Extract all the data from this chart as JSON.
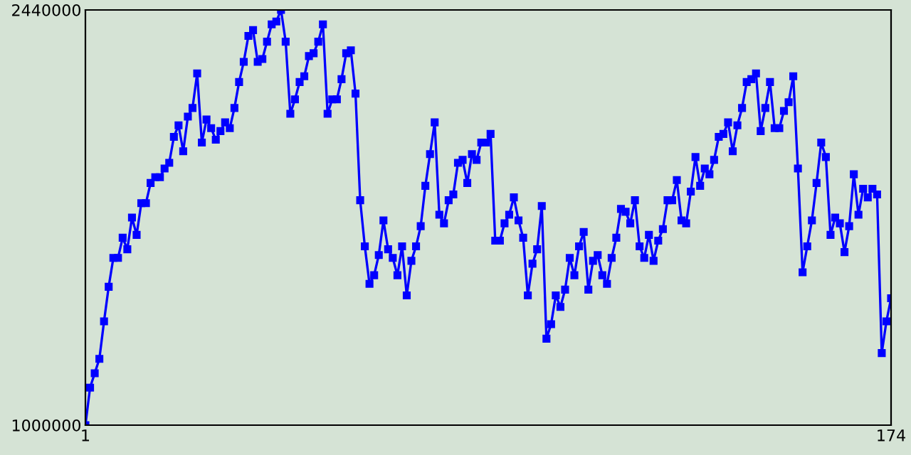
{
  "chart_data": {
    "type": "line",
    "x": [
      1,
      2,
      3,
      4,
      5,
      6,
      7,
      8,
      9,
      10,
      11,
      12,
      13,
      14,
      15,
      16,
      17,
      18,
      19,
      20,
      21,
      22,
      23,
      24,
      25,
      26,
      27,
      28,
      29,
      30,
      31,
      32,
      33,
      34,
      35,
      36,
      37,
      38,
      39,
      40,
      41,
      42,
      43,
      44,
      45,
      46,
      47,
      48,
      49,
      50,
      51,
      52,
      53,
      54,
      55,
      56,
      57,
      58,
      59,
      60,
      61,
      62,
      63,
      64,
      65,
      66,
      67,
      68,
      69,
      70,
      71,
      72,
      73,
      74,
      75,
      76,
      77,
      78,
      79,
      80,
      81,
      82,
      83,
      84,
      85,
      86,
      87,
      88,
      89,
      90,
      91,
      92,
      93,
      94,
      95,
      96,
      97,
      98,
      99,
      100,
      101,
      102,
      103,
      104,
      105,
      106,
      107,
      108,
      109,
      110,
      111,
      112,
      113,
      114,
      115,
      116,
      117,
      118,
      119,
      120,
      121,
      122,
      123,
      124,
      125,
      126,
      127,
      128,
      129,
      130,
      131,
      132,
      133,
      134,
      135,
      136,
      137,
      138,
      139,
      140,
      141,
      142,
      143,
      144,
      145,
      146,
      147,
      148,
      149,
      150,
      151,
      152,
      153,
      154,
      155,
      156,
      157,
      158,
      159,
      160,
      161,
      162,
      163,
      164,
      165,
      166,
      167,
      168,
      169,
      170,
      171,
      172,
      173,
      174
    ],
    "series": [
      {
        "color": "#0000ff",
        "values": [
          1000000,
          1130000,
          1180000,
          1230000,
          1360000,
          1480000,
          1580000,
          1580000,
          1650000,
          1610000,
          1720000,
          1660000,
          1770000,
          1770000,
          1840000,
          1860000,
          1860000,
          1890000,
          1910000,
          2000000,
          2040000,
          1950000,
          2070000,
          2100000,
          2220000,
          1980000,
          2060000,
          2030000,
          1990000,
          2020000,
          2050000,
          2030000,
          2100000,
          2190000,
          2260000,
          2350000,
          2370000,
          2260000,
          2270000,
          2330000,
          2390000,
          2400000,
          2440000,
          2330000,
          2080000,
          2130000,
          2190000,
          2210000,
          2280000,
          2290000,
          2330000,
          2390000,
          2080000,
          2130000,
          2130000,
          2200000,
          2290000,
          2300000,
          2150000,
          1780000,
          1620000,
          1490000,
          1520000,
          1590000,
          1710000,
          1610000,
          1580000,
          1520000,
          1620000,
          1450000,
          1570000,
          1620000,
          1690000,
          1830000,
          1940000,
          2050000,
          1730000,
          1700000,
          1780000,
          1800000,
          1910000,
          1920000,
          1840000,
          1940000,
          1920000,
          1980000,
          1980000,
          2010000,
          1640000,
          1640000,
          1700000,
          1730000,
          1790000,
          1710000,
          1650000,
          1450000,
          1560000,
          1610000,
          1760000,
          1300000,
          1350000,
          1450000,
          1410000,
          1470000,
          1580000,
          1520000,
          1620000,
          1670000,
          1470000,
          1570000,
          1590000,
          1520000,
          1490000,
          1580000,
          1650000,
          1750000,
          1740000,
          1700000,
          1780000,
          1620000,
          1580000,
          1660000,
          1570000,
          1640000,
          1680000,
          1780000,
          1780000,
          1850000,
          1710000,
          1700000,
          1810000,
          1930000,
          1830000,
          1890000,
          1870000,
          1920000,
          2000000,
          2010000,
          2050000,
          1950000,
          2040000,
          2100000,
          2190000,
          2200000,
          2220000,
          2020000,
          2100000,
          2190000,
          2030000,
          2030000,
          2090000,
          2120000,
          2210000,
          1890000,
          1530000,
          1620000,
          1710000,
          1840000,
          1980000,
          1930000,
          1660000,
          1720000,
          1700000,
          1600000,
          1690000,
          1870000,
          1730000,
          1820000,
          1790000,
          1820000,
          1800000,
          1250000,
          1360000,
          1440000
        ]
      }
    ],
    "xlim": [
      1,
      174
    ],
    "xticks": [
      1,
      174
    ],
    "ylim": [
      1000000,
      2440000
    ],
    "yticks": [
      1000000,
      2440000
    ],
    "marker": "square",
    "line_style": "solid",
    "grid": false
  }
}
